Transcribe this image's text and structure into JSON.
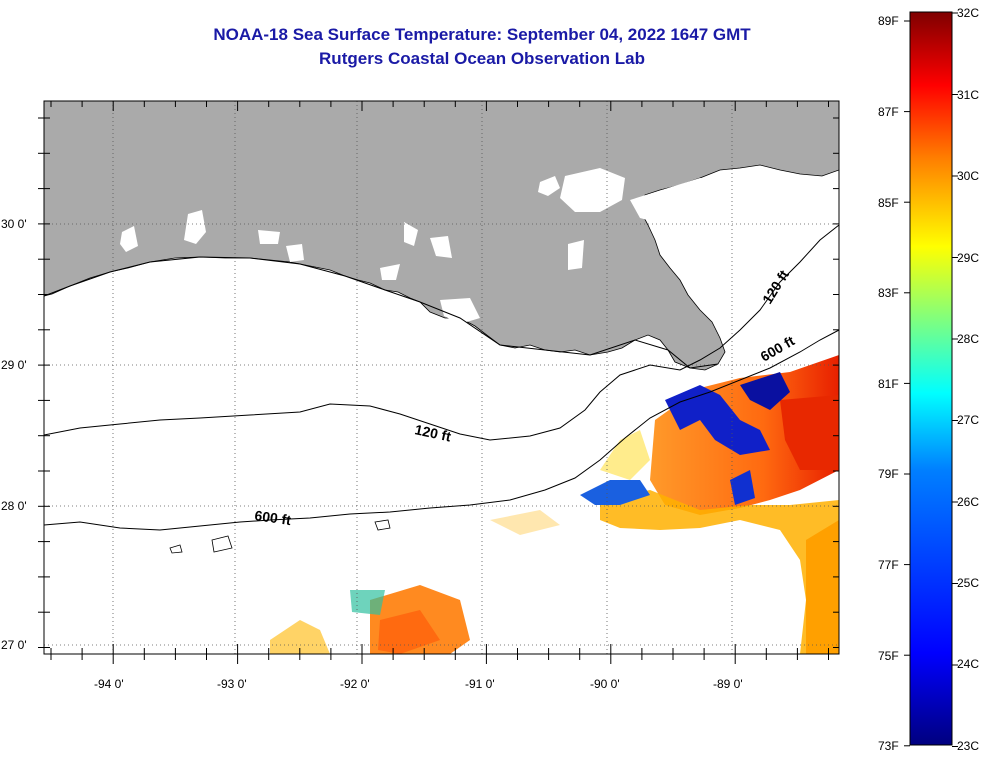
{
  "title": {
    "line1": "NOAA-18 Sea Surface Temperature:  September 04, 2022 1647 GMT",
    "line2": "Rutgers Coastal Ocean Observation Lab"
  },
  "map": {
    "lon_ticks": [
      "-94 0'",
      "-93 0'",
      "-92 0'",
      "-91 0'",
      "-90 0'",
      "-89 0'"
    ],
    "lat_ticks": [
      "30 0'",
      "29 0'",
      "28 0'",
      "27 0'"
    ],
    "contour_labels": [
      {
        "text": "120 ft"
      },
      {
        "text": "600 ft"
      },
      {
        "text": "120 ft"
      },
      {
        "text": "600 ft"
      }
    ],
    "colors": {
      "land": "#aaaaaa",
      "ocean_nodata": "#ffffff",
      "grid": "#000000"
    }
  },
  "colorbar": {
    "fahrenheit": [
      "89F",
      "87F",
      "85F",
      "83F",
      "81F",
      "79F",
      "77F",
      "75F",
      "73F"
    ],
    "celsius": [
      "32C",
      "31C",
      "30C",
      "29C",
      "28C",
      "27C",
      "26C",
      "25C",
      "24C",
      "23C"
    ],
    "colormap": [
      "#00007f",
      "#0000ff",
      "#007fff",
      "#00ffff",
      "#7fff7f",
      "#ffff00",
      "#ff7f00",
      "#ff0000",
      "#7f0000"
    ]
  }
}
